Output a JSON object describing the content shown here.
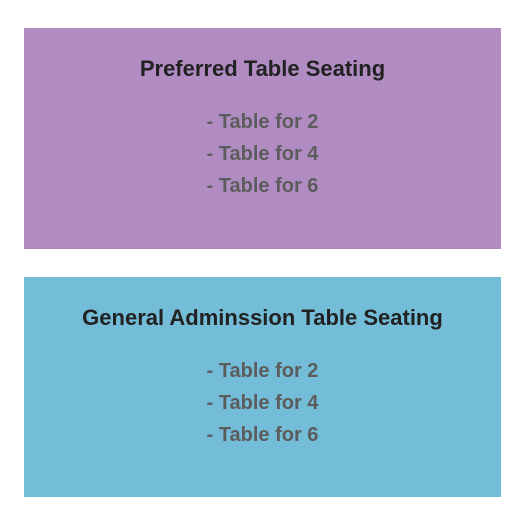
{
  "sections": [
    {
      "title": "Preferred Table Seating",
      "background_color": "#b18cc2",
      "title_color": "#222222",
      "title_fontsize": 22,
      "item_color": "#5c5c5c",
      "item_fontsize": 20,
      "items": [
        "- Table for 2",
        "- Table for 4",
        "- Table for 6"
      ]
    },
    {
      "title": "General Adminssion Table Seating",
      "background_color": "#73bdd8",
      "title_color": "#222222",
      "title_fontsize": 22,
      "item_color": "#5c5c5c",
      "item_fontsize": 20,
      "items": [
        "- Table for 2",
        "- Table for 4",
        "- Table for 6"
      ]
    }
  ],
  "page_background": "#ffffff"
}
